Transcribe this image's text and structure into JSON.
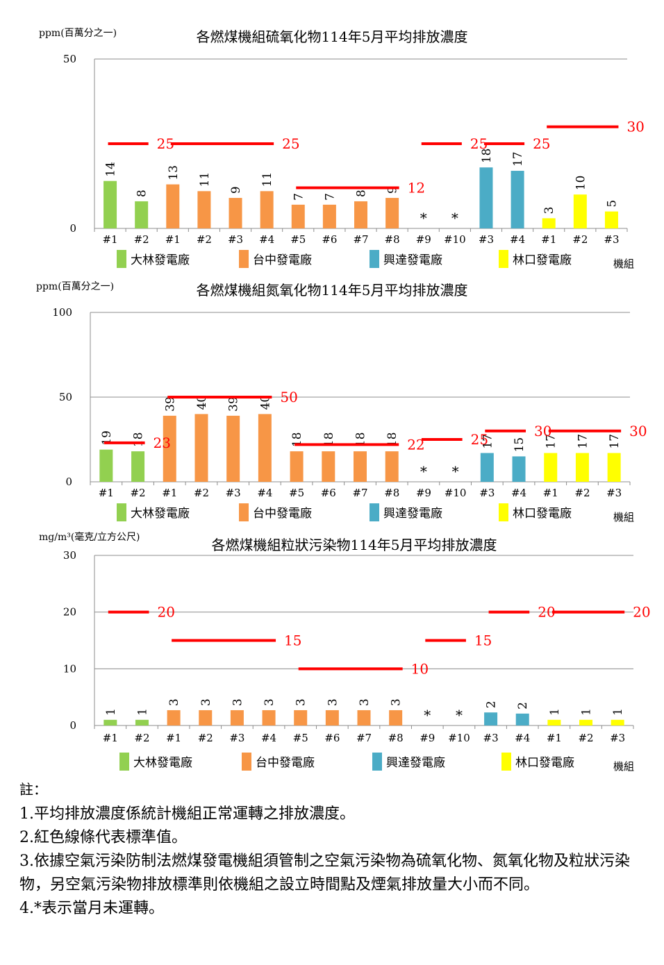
{
  "chart_data": [
    {
      "type": "bar",
      "title": "各燃煤機組硫氧化物114年5月平均排放濃度",
      "ylabel": "ppm(百萬分之一)",
      "xlabel": "機組",
      "ylim": [
        0,
        50
      ],
      "yticks": [
        "0",
        "50"
      ],
      "categories": [
        "#1",
        "#2",
        "#1",
        "#2",
        "#3",
        "#4",
        "#5",
        "#6",
        "#7",
        "#8",
        "#9",
        "#10",
        "#3",
        "#4",
        "#1",
        "#2",
        "#3"
      ],
      "plants": [
        "大林",
        "大林",
        "台中",
        "台中",
        "台中",
        "台中",
        "台中",
        "台中",
        "台中",
        "台中",
        "台中",
        "台中",
        "興達",
        "興達",
        "林口",
        "林口",
        "林口"
      ],
      "values": [
        14,
        8,
        13,
        11,
        9,
        11,
        7,
        7,
        8,
        9,
        null,
        null,
        18,
        17,
        3,
        10,
        5
      ],
      "value_labels": [
        "14",
        "8",
        "13",
        "11",
        "9",
        "11",
        "7",
        "7",
        "8",
        "9",
        "*",
        "*",
        "18",
        "17",
        "3",
        "10",
        "5"
      ],
      "standards": [
        {
          "from": 0,
          "to": 1,
          "value": 25,
          "label": "25"
        },
        {
          "from": 2,
          "to": 5,
          "value": 25,
          "label": "25"
        },
        {
          "from": 6,
          "to": 9,
          "value": 12,
          "label": "12"
        },
        {
          "from": 10,
          "to": 11,
          "value": 25,
          "label": "25"
        },
        {
          "from": 12,
          "to": 13,
          "value": 25,
          "label": "25"
        },
        {
          "from": 14,
          "to": 16,
          "value": 30,
          "label": "30"
        }
      ],
      "legend": [
        {
          "name": "大林發電廠",
          "color": "#92d050"
        },
        {
          "name": "台中發電廠",
          "color": "#f79646"
        },
        {
          "name": "興達發電廠",
          "color": "#4bacc6"
        },
        {
          "name": "林口發電廠",
          "color": "#ffff00"
        }
      ]
    },
    {
      "type": "bar",
      "title": "各燃煤機組氮氧化物114年5月平均排放濃度",
      "ylabel": "ppm(百萬分之一)",
      "xlabel": "機組",
      "ylim": [
        0,
        100
      ],
      "yticks": [
        "0",
        "50",
        "100"
      ],
      "categories": [
        "#1",
        "#2",
        "#1",
        "#2",
        "#3",
        "#4",
        "#5",
        "#6",
        "#7",
        "#8",
        "#9",
        "#10",
        "#3",
        "#4",
        "#1",
        "#2",
        "#3"
      ],
      "plants": [
        "大林",
        "大林",
        "台中",
        "台中",
        "台中",
        "台中",
        "台中",
        "台中",
        "台中",
        "台中",
        "台中",
        "台中",
        "興達",
        "興達",
        "林口",
        "林口",
        "林口"
      ],
      "values": [
        19,
        18,
        39,
        40,
        39,
        40,
        18,
        18,
        18,
        18,
        null,
        null,
        17,
        15,
        17,
        17,
        17
      ],
      "value_labels": [
        "19",
        "18",
        "39",
        "40",
        "39",
        "40",
        "18",
        "18",
        "18",
        "18",
        "*",
        "*",
        "17",
        "15",
        "17",
        "17",
        "17"
      ],
      "standards": [
        {
          "from": 0,
          "to": 1,
          "value": 23,
          "label": "23"
        },
        {
          "from": 2,
          "to": 5,
          "value": 50,
          "label": "50"
        },
        {
          "from": 6,
          "to": 9,
          "value": 22,
          "label": "22"
        },
        {
          "from": 10,
          "to": 11,
          "value": 25,
          "label": "25"
        },
        {
          "from": 12,
          "to": 13,
          "value": 30,
          "label": "30"
        },
        {
          "from": 14,
          "to": 16,
          "value": 30,
          "label": "30"
        }
      ],
      "legend": [
        {
          "name": "大林發電廠",
          "color": "#92d050"
        },
        {
          "name": "台中發電廠",
          "color": "#f79646"
        },
        {
          "name": "興達發電廠",
          "color": "#4bacc6"
        },
        {
          "name": "林口發電廠",
          "color": "#ffff00"
        }
      ]
    },
    {
      "type": "bar",
      "title": "各燃煤機組粒狀污染物114年5月平均排放濃度",
      "ylabel": "mg/m³(毫克/立方公尺)",
      "xlabel": "機組",
      "ylim": [
        0,
        30
      ],
      "yticks": [
        "0",
        "10",
        "20",
        "30"
      ],
      "categories": [
        "#1",
        "#2",
        "#1",
        "#2",
        "#3",
        "#4",
        "#5",
        "#6",
        "#7",
        "#8",
        "#9",
        "#10",
        "#3",
        "#4",
        "#1",
        "#2",
        "#3"
      ],
      "plants": [
        "大林",
        "大林",
        "台中",
        "台中",
        "台中",
        "台中",
        "台中",
        "台中",
        "台中",
        "台中",
        "台中",
        "台中",
        "興達",
        "興達",
        "林口",
        "林口",
        "林口"
      ],
      "values": [
        1,
        1,
        2.7,
        2.7,
        2.7,
        2.7,
        2.7,
        2.7,
        2.7,
        2.7,
        null,
        null,
        2.3,
        2.1,
        1,
        1,
        1
      ],
      "value_labels": [
        "1",
        "1",
        "3",
        "3",
        "3",
        "3",
        "3",
        "3",
        "3",
        "3",
        "*",
        "*",
        "2",
        "2",
        "1",
        "1",
        "1"
      ],
      "standards": [
        {
          "from": 0,
          "to": 1,
          "value": 20,
          "label": "20"
        },
        {
          "from": 2,
          "to": 5,
          "value": 15,
          "label": "15"
        },
        {
          "from": 6,
          "to": 9,
          "value": 10,
          "label": "10"
        },
        {
          "from": 10,
          "to": 11,
          "value": 15,
          "label": "15"
        },
        {
          "from": 12,
          "to": 13,
          "value": 20,
          "label": "20"
        },
        {
          "from": 14,
          "to": 16,
          "value": 20,
          "label": "20"
        }
      ],
      "legend": [
        {
          "name": "大林發電廠",
          "color": "#92d050"
        },
        {
          "name": "台中發電廠",
          "color": "#f79646"
        },
        {
          "name": "興達發電廠",
          "color": "#4bacc6"
        },
        {
          "name": "林口發電廠",
          "color": "#ffff00"
        }
      ]
    }
  ],
  "colors": {
    "大林": "#92d050",
    "台中": "#f79646",
    "興達": "#4bacc6",
    "林口": "#ffff00",
    "standard_line": "#ff0000"
  },
  "notes": {
    "heading": "註：",
    "items": [
      "1.平均排放濃度係統計機組正常運轉之排放濃度。",
      "2.紅色線條代表標準值。",
      "3.依據空氣污染防制法燃煤發電機組須管制之空氣污染物為硫氧化物、氮氧化物及粒狀污染物，另空氣污染物排放標準則依機組之設立時間點及煙氣排放量大小而不同。",
      "4.*表示當月未運轉。"
    ]
  }
}
